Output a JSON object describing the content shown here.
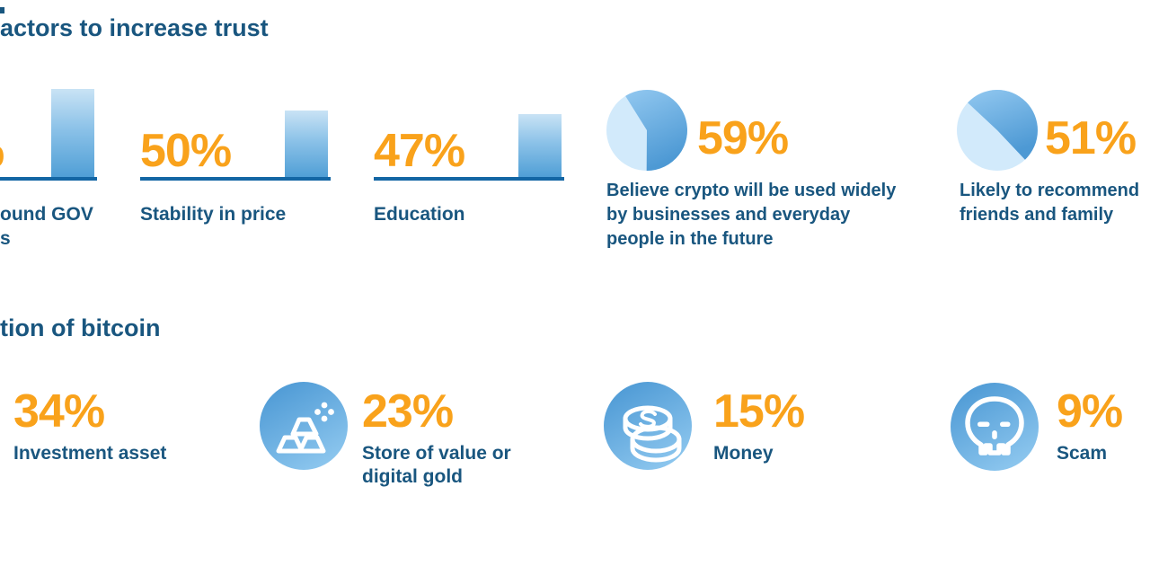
{
  "colors": {
    "navy_text": "#19567F",
    "orange_accent": "#F9A21B",
    "bar_gradient_top": "#C9E3F5",
    "bar_gradient_bottom": "#509FD6",
    "baseline_blue": "#1366A4",
    "pie_light_slice": "#D2EAFB",
    "pie_dark_slice_top": "#92C8F0",
    "pie_dark_slice_bottom": "#4D99D4",
    "icon_circle_gradient_start": "#4B98D4",
    "icon_circle_gradient_end": "#92CAF0",
    "background": "#FFFFFF"
  },
  "chart_data": [
    {
      "type": "bar",
      "title": "actors to increase trust",
      "categories": [
        "ound GOV\ns",
        "Stability in price",
        "Education"
      ],
      "values": [
        66,
        50,
        47
      ],
      "value_labels": [
        "%",
        "50%",
        "47%"
      ],
      "xlabel": "",
      "ylabel": "",
      "ylim": [
        0,
        100
      ],
      "grid": false,
      "legend": "none"
    },
    {
      "type": "pie",
      "values": [
        59,
        41
      ],
      "value_label": "59%",
      "label": "Believe crypto will be used widely\nby businesses and everyday\npeople in the future",
      "start_angle_deg": -32,
      "slice_order": [
        "dark-blue",
        "light-blue"
      ],
      "legend": "none"
    },
    {
      "type": "pie",
      "values": [
        51,
        49
      ],
      "value_label": "51%",
      "label": "Likely to recommend\nfriends and family",
      "start_angle_deg": -47,
      "slice_order": [
        "dark-blue",
        "light-blue"
      ],
      "legend": "none"
    },
    {
      "type": "table",
      "title": "tion of bitcoin",
      "categories": [
        "Investment asset",
        "Store of value or\ndigital gold",
        "Money",
        "Scam"
      ],
      "values": [
        34,
        23,
        15,
        9
      ],
      "value_labels": [
        "34%",
        "23%",
        "15%",
        "9%"
      ],
      "icons": [
        "",
        "gold-bars",
        "coins",
        "skull"
      ]
    }
  ]
}
